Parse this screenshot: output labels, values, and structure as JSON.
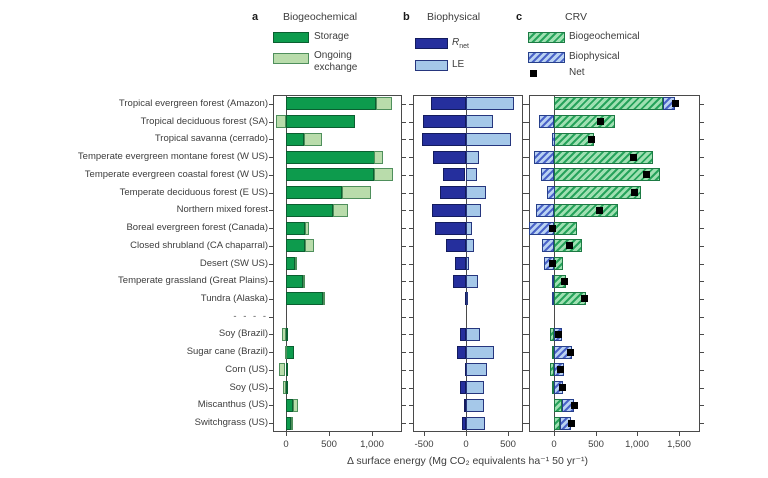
{
  "figure": {
    "panel_letter_a": "a",
    "panel_letter_b": "b",
    "panel_letter_c": "c",
    "legend_a": {
      "title": "Biogeochemical",
      "items": [
        {
          "label": "Storage"
        },
        {
          "label": "Ongoing exchange"
        }
      ]
    },
    "legend_b": {
      "title": "Biophysical",
      "items": [
        {
          "label": "R",
          "sub": "net"
        },
        {
          "label": "LE"
        }
      ]
    },
    "legend_c": {
      "title": "CRV",
      "items": [
        {
          "label": "Biogeochemical"
        },
        {
          "label": "Biophysical"
        },
        {
          "label": "Net"
        }
      ]
    },
    "separator_label": "- - - -",
    "x_axis_title": "Δ surface energy (Mg CO₂ equivalents ha⁻¹ 50 yr⁻¹)"
  },
  "colors": {
    "storage_green": "#0d9b4d",
    "exchange_light_green": "#b9dcab",
    "rnet_navy": "#252f9d",
    "le_light_blue": "#a5c8e9",
    "crv_biogeochemical_hatch": "#26a35b",
    "crv_biophysical_hatch": "#4a63c8",
    "net_black": "#000000",
    "axis": "#4a4a4a"
  },
  "chart_data": {
    "type": "bar",
    "orientation": "horizontal",
    "xlabel": "Δ surface energy (Mg CO₂ equivalents ha⁻¹ 50 yr⁻¹)",
    "grid": false,
    "separator_after_index": 11,
    "categories": [
      "Tropical evergreen forest (Amazon)",
      "Tropical deciduous forest (SA)",
      "Tropical savanna (cerrado)",
      "Temperate evergreen montane forest (W US)",
      "Temperate evergreen coastal forest (W US)",
      "Temperate deciduous forest (E US)",
      "Northern mixed forest",
      "Boreal evergreen forest (Canada)",
      "Closed shrubland (CA chaparral)",
      "Desert (SW US)",
      "Temperate grassland (Great Plains)",
      "Tundra (Alaska)",
      "Soy (Brazil)",
      "Sugar cane (Brazil)",
      "Corn (US)",
      "Soy (US)",
      "Miscanthus (US)",
      "Switchgrass (US)"
    ],
    "panels": [
      {
        "id": "a",
        "title": "Biogeochemical",
        "xlim": [
          -150,
          1350
        ],
        "ticks": [
          0,
          500,
          1000
        ],
        "series": [
          {
            "name": "Storage",
            "values": [
              1050,
              800,
              210,
              1030,
              1020,
              650,
              550,
              220,
              220,
              100,
              200,
              430,
              10,
              90,
              20,
              10,
              80,
              55
            ]
          },
          {
            "name": "Ongoing exchange",
            "values": [
              190,
              -115,
              210,
              100,
              220,
              340,
              180,
              50,
              105,
              5,
              10,
              5,
              -45,
              -10,
              -75,
              -30,
              60,
              25
            ]
          }
        ]
      },
      {
        "id": "b",
        "title": "Biophysical",
        "xlim": [
          -625,
          675
        ],
        "ticks": [
          -500,
          0,
          500
        ],
        "series": [
          {
            "name": "Rnet",
            "values": [
              -415,
              -505,
              -520,
              -385,
              -265,
              -305,
              -400,
              -370,
              -235,
              -130,
              -155,
              -15,
              -70,
              -105,
              -10,
              -70,
              -20,
              -45
            ]
          },
          {
            "name": "LE",
            "values": [
              570,
              320,
              530,
              150,
              125,
              235,
              175,
              75,
              90,
              35,
              145,
              5,
              160,
              330,
              250,
              215,
              215,
              225
            ]
          }
        ]
      },
      {
        "id": "c",
        "title": "CRV",
        "xlim": [
          -300,
          1750
        ],
        "ticks": [
          0,
          500,
          1000,
          1500
        ],
        "series": [
          {
            "name": "Biogeochemical",
            "values": [
              1310,
              730,
              475,
              1185,
              1265,
              1045,
              765,
              280,
              335,
              110,
              140,
              380,
              -50,
              -20,
              -50,
              -20,
              100,
              70
            ]
          },
          {
            "name": "Biophysical",
            "values": [
              140,
              -180,
              -30,
              -240,
              -160,
              -90,
              -220,
              -300,
              -140,
              -120,
              -20,
              -20,
              95,
              210,
              120,
              110,
              140,
              135
            ]
          },
          {
            "name": "Net",
            "values": [
              1450,
              550,
              445,
              945,
              1105,
              955,
              545,
              -30,
              175,
              -30,
              120,
              360,
              45,
              190,
              70,
              90,
              245,
              205
            ]
          }
        ]
      }
    ]
  }
}
